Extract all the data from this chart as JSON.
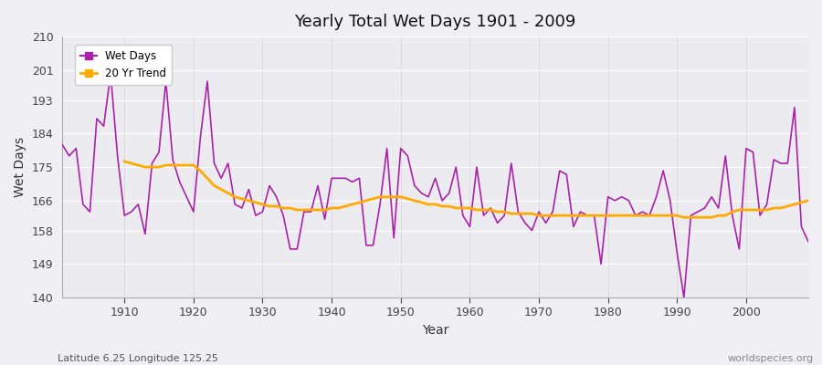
{
  "title": "Yearly Total Wet Days 1901 - 2009",
  "xlabel": "Year",
  "ylabel": "Wet Days",
  "footnote_left": "Latitude 6.25 Longitude 125.25",
  "footnote_right": "worldspecies.org",
  "legend_wet": "Wet Days",
  "legend_trend": "20 Yr Trend",
  "wet_color": "#aa22aa",
  "trend_color": "#ffaa00",
  "bg_color": "#f0f0f5",
  "plot_bg": "#ebebf0",
  "ylim": [
    140,
    210
  ],
  "yticks": [
    140,
    149,
    158,
    166,
    175,
    184,
    193,
    201,
    210
  ],
  "years": [
    1901,
    1902,
    1903,
    1904,
    1905,
    1906,
    1907,
    1908,
    1909,
    1910,
    1911,
    1912,
    1913,
    1914,
    1915,
    1916,
    1917,
    1918,
    1919,
    1920,
    1921,
    1922,
    1923,
    1924,
    1925,
    1926,
    1927,
    1928,
    1929,
    1930,
    1931,
    1932,
    1933,
    1934,
    1935,
    1936,
    1937,
    1938,
    1939,
    1940,
    1941,
    1942,
    1943,
    1944,
    1945,
    1946,
    1947,
    1948,
    1949,
    1950,
    1951,
    1952,
    1953,
    1954,
    1955,
    1956,
    1957,
    1958,
    1959,
    1960,
    1961,
    1962,
    1963,
    1964,
    1965,
    1966,
    1967,
    1968,
    1969,
    1970,
    1971,
    1972,
    1973,
    1974,
    1975,
    1976,
    1977,
    1978,
    1979,
    1980,
    1981,
    1982,
    1983,
    1984,
    1985,
    1986,
    1987,
    1988,
    1989,
    1990,
    1991,
    1992,
    1993,
    1994,
    1995,
    1996,
    1997,
    1998,
    1999,
    2000,
    2001,
    2002,
    2003,
    2004,
    2005,
    2006,
    2007,
    2008,
    2009
  ],
  "wet_days": [
    181,
    178,
    180,
    165,
    163,
    188,
    186,
    200,
    178,
    162,
    163,
    165,
    157,
    176,
    179,
    198,
    177,
    171,
    167,
    163,
    183,
    198,
    176,
    172,
    176,
    165,
    164,
    169,
    162,
    163,
    170,
    167,
    162,
    153,
    153,
    163,
    163,
    170,
    161,
    172,
    172,
    172,
    171,
    172,
    154,
    154,
    165,
    180,
    156,
    180,
    178,
    170,
    168,
    167,
    172,
    166,
    168,
    175,
    162,
    159,
    175,
    162,
    164,
    160,
    162,
    176,
    163,
    160,
    158,
    163,
    160,
    163,
    174,
    173,
    159,
    163,
    162,
    162,
    149,
    167,
    166,
    167,
    166,
    162,
    163,
    162,
    167,
    174,
    166,
    152,
    140,
    162,
    163,
    164,
    167,
    164,
    178,
    162,
    153,
    180,
    179,
    162,
    165,
    177,
    176,
    176,
    191,
    159,
    155
  ],
  "trend_years": [
    1910,
    1911,
    1912,
    1913,
    1914,
    1915,
    1916,
    1917,
    1918,
    1919,
    1920,
    1921,
    1922,
    1923,
    1924,
    1925,
    1926,
    1927,
    1928,
    1929,
    1930,
    1931,
    1932,
    1933,
    1934,
    1935,
    1936,
    1937,
    1938,
    1939,
    1940,
    1941,
    1942,
    1943,
    1944,
    1945,
    1946,
    1947,
    1948,
    1949,
    1950,
    1951,
    1952,
    1953,
    1954,
    1955,
    1956,
    1957,
    1958,
    1959,
    1960,
    1961,
    1962,
    1963,
    1964,
    1965,
    1966,
    1967,
    1968,
    1969,
    1970,
    1971,
    1972,
    1973,
    1974,
    1975,
    1976,
    1977,
    1978,
    1979,
    1980,
    1981,
    1982,
    1983,
    1984,
    1985,
    1986,
    1987,
    1988,
    1989,
    1990,
    1991,
    1992,
    1993,
    1994,
    1995,
    1996,
    1997,
    1998,
    1999,
    2000,
    2001,
    2002,
    2003,
    2004,
    2005,
    2006,
    2007,
    2008,
    2009
  ],
  "trend_vals": [
    176.5,
    176.0,
    175.5,
    175.0,
    175.0,
    175.0,
    175.5,
    175.5,
    175.5,
    175.5,
    175.5,
    174.0,
    172.0,
    170.0,
    169.0,
    168.0,
    167.0,
    166.5,
    166.0,
    165.5,
    165.0,
    164.5,
    164.5,
    164.0,
    164.0,
    163.5,
    163.5,
    163.5,
    163.5,
    163.5,
    164.0,
    164.0,
    164.5,
    165.0,
    165.5,
    166.0,
    166.5,
    167.0,
    167.0,
    167.0,
    167.0,
    166.5,
    166.0,
    165.5,
    165.0,
    165.0,
    164.5,
    164.5,
    164.0,
    164.0,
    164.0,
    163.5,
    163.5,
    163.5,
    163.0,
    163.0,
    162.5,
    162.5,
    162.5,
    162.5,
    162.0,
    162.0,
    162.0,
    162.0,
    162.0,
    162.0,
    162.0,
    162.0,
    162.0,
    162.0,
    162.0,
    162.0,
    162.0,
    162.0,
    162.0,
    162.0,
    162.0,
    162.0,
    162.0,
    162.0,
    162.0,
    161.5,
    161.5,
    161.5,
    161.5,
    161.5,
    162.0,
    162.0,
    163.0,
    163.5,
    163.5,
    163.5,
    163.5,
    163.5,
    164.0,
    164.0,
    164.5,
    165.0,
    165.5,
    166.0
  ]
}
